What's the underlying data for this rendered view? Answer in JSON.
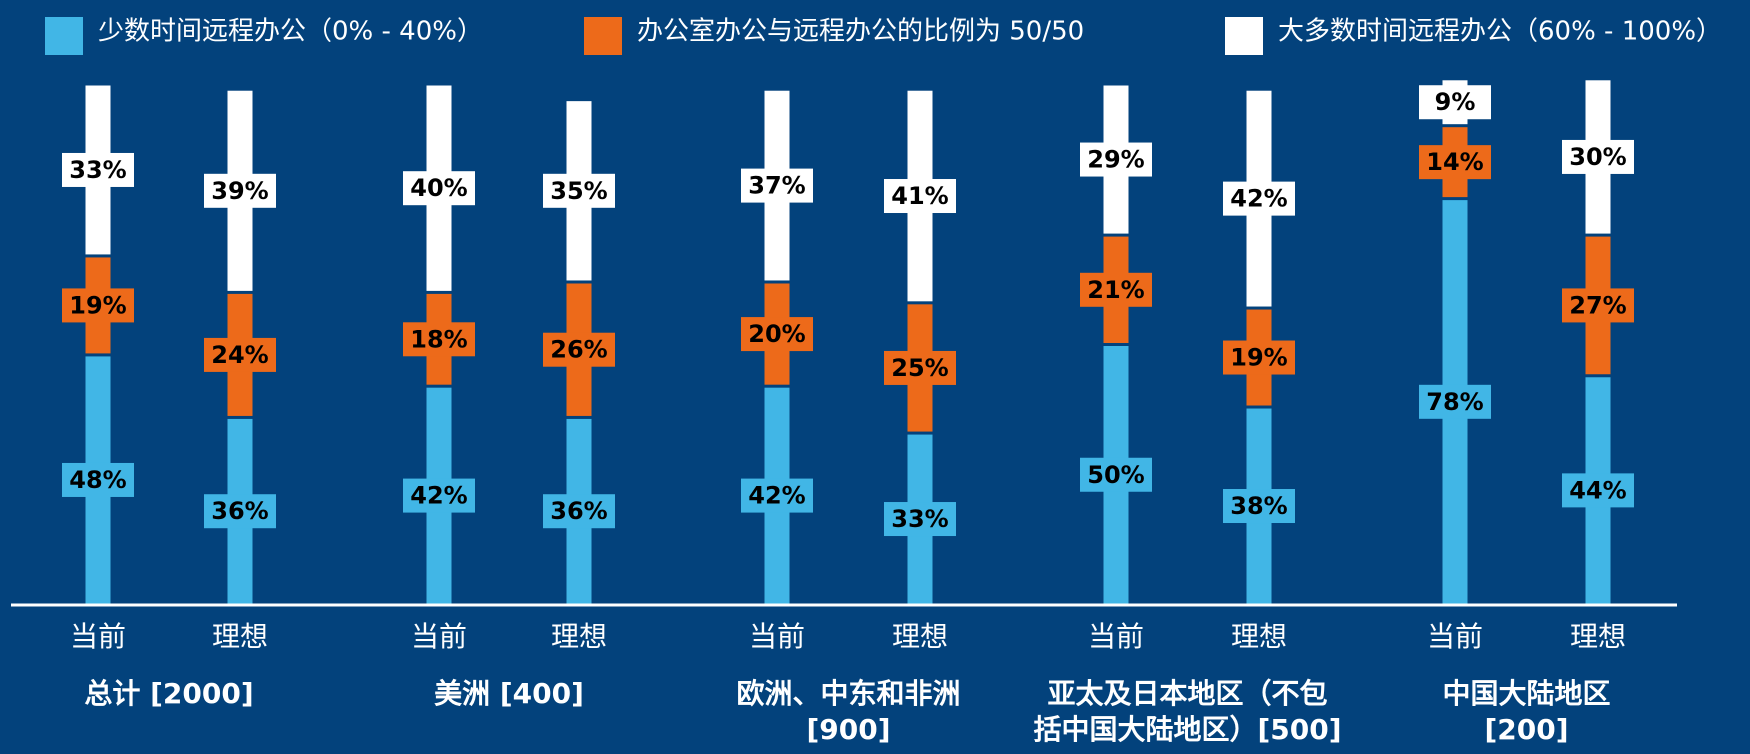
{
  "chart_data": {
    "type": "stacked_bar",
    "categories": [
      "当前",
      "理想",
      "当前",
      "理想",
      "当前",
      "理想",
      "当前",
      "理想",
      "当前",
      "理想"
    ],
    "groups": [
      "总计 [2000]",
      "美洲 [400]",
      "欧洲、中东和非洲\n[900]",
      "亚太及日本地区（不包\n括中国大陆地区）[500]",
      "中国大陆地区\n[200]"
    ],
    "ylim": [
      0,
      100
    ],
    "legend": "top",
    "series": [
      {
        "name": "少数时间远程办公（0% - 40%）",
        "color": "#41b6e6",
        "values": [
          48,
          36,
          42,
          36,
          42,
          33,
          50,
          38,
          78,
          44
        ],
        "value_labels": [
          "48%",
          "36%",
          "42%",
          "36%",
          "42%",
          "33%",
          "50%",
          "38%",
          "78%",
          "44%"
        ]
      },
      {
        "name": "办公室办公与远程办公的比例为 50/50",
        "color": "#ed6a1a",
        "values": [
          19,
          24,
          18,
          26,
          20,
          25,
          21,
          19,
          14,
          27
        ],
        "value_labels": [
          "19%",
          "24%",
          "18%",
          "26%",
          "20%",
          "25%",
          "21%",
          "19%",
          "14%",
          "27%"
        ]
      },
      {
        "name": "大多数时间远程办公（60% - 100%）",
        "color": "#ffffff",
        "values": [
          33,
          39,
          40,
          35,
          37,
          41,
          29,
          42,
          9,
          30
        ],
        "value_labels": [
          "33%",
          "39%",
          "40%",
          "35%",
          "37%",
          "41%",
          "29%",
          "42%",
          "9%",
          "30%"
        ]
      }
    ]
  }
}
